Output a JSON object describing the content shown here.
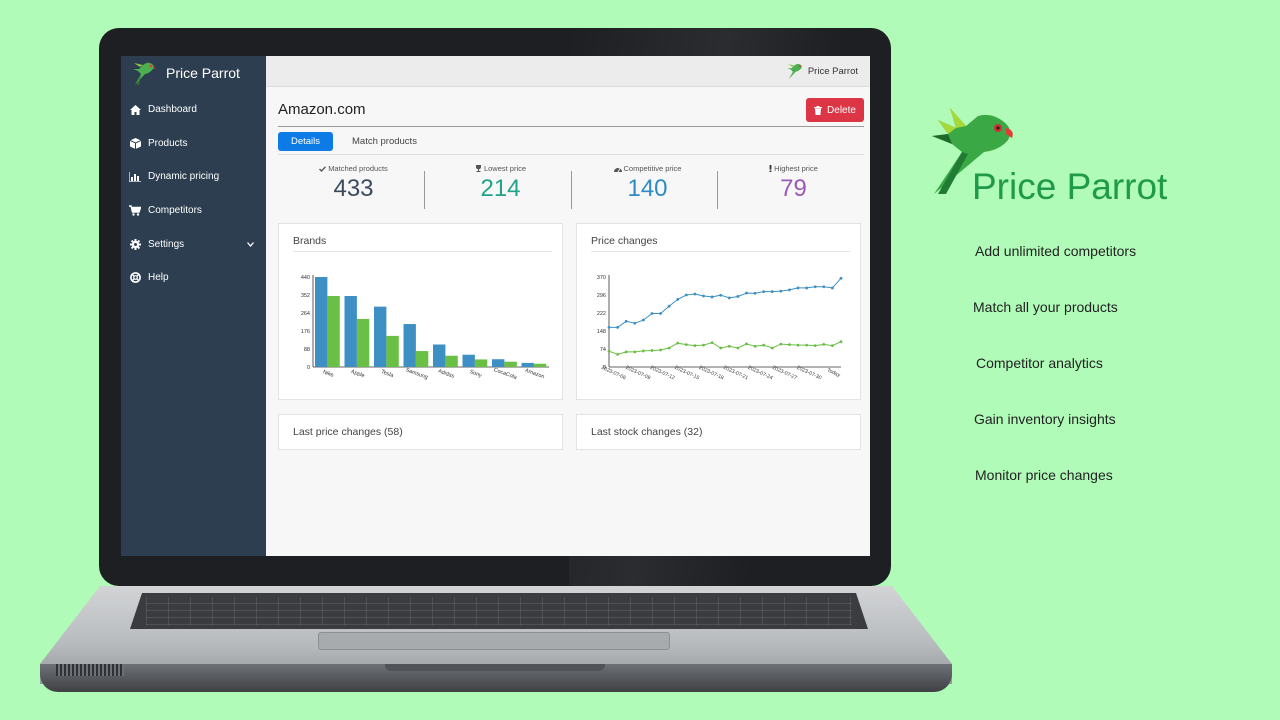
{
  "app": {
    "brand": "Price Parrot",
    "sidebar": {
      "items": [
        {
          "label": "Dashboard",
          "icon": "home-icon"
        },
        {
          "label": "Products",
          "icon": "box-icon"
        },
        {
          "label": "Dynamic pricing",
          "icon": "bar-chart-icon"
        },
        {
          "label": "Competitors",
          "icon": "cart-icon"
        },
        {
          "label": "Settings",
          "icon": "gear-icon"
        },
        {
          "label": "Help",
          "icon": "help-icon"
        }
      ]
    },
    "topbar": {
      "brand": "Price Parrot"
    },
    "page": {
      "title": "Amazon.com",
      "delete_label": "Delete",
      "tabs": [
        {
          "label": "Details",
          "active": true
        },
        {
          "label": "Match products",
          "active": false
        }
      ]
    },
    "stats": [
      {
        "label": "Matched products",
        "value": "433",
        "color": "#3b4b5c",
        "icon": "check-icon"
      },
      {
        "label": "Lowest price",
        "value": "214",
        "color": "#21a38a",
        "icon": "trophy-icon"
      },
      {
        "label": "Competitive price",
        "value": "140",
        "color": "#2e8bc4",
        "icon": "speedometer-icon"
      },
      {
        "label": "Highest price",
        "value": "79",
        "color": "#9b59b6",
        "icon": "exclamation-icon"
      }
    ],
    "cards": {
      "brands_title": "Brands",
      "price_changes_title": "Price changes",
      "last_price_changes": "Last price changes (58)",
      "last_stock_changes": "Last stock changes (32)"
    }
  },
  "chart_data": [
    {
      "type": "bar",
      "title": "Brands",
      "categories": [
        "Nike",
        "Apple",
        "Tesla",
        "Samsung",
        "Adidas",
        "Sony",
        "CocaCola",
        "Amazon"
      ],
      "series": [
        {
          "values": [
            440,
            347,
            295,
            210,
            110,
            60,
            38,
            20
          ],
          "color": "#3d8fc4"
        },
        {
          "values": [
            347,
            235,
            152,
            78,
            55,
            37,
            26,
            16
          ],
          "color": "#6abf45"
        }
      ],
      "y_ticks": [
        0,
        88,
        176,
        264,
        352,
        440
      ],
      "ylim": [
        0,
        440
      ]
    },
    {
      "type": "line",
      "title": "Price changes",
      "x_labels": [
        "2023-07-06",
        "2023-07-09",
        "2023-07-12",
        "2023-07-15",
        "2023-07-18",
        "2023-07-21",
        "2023-07-24",
        "2023-07-27",
        "2023-07-30",
        "Today"
      ],
      "y_ticks": [
        0,
        74,
        148,
        222,
        296,
        370
      ],
      "ylim": [
        0,
        370
      ],
      "series": [
        {
          "color": "#3d8fc4",
          "values": [
            163,
            163,
            188,
            180,
            193,
            220,
            220,
            250,
            278,
            296,
            300,
            292,
            288,
            295,
            284,
            290,
            304,
            303,
            310,
            310,
            312,
            317,
            325,
            325,
            330,
            330,
            325,
            365
          ]
        },
        {
          "color": "#6abf45",
          "values": [
            65,
            52,
            62,
            62,
            66,
            68,
            70,
            78,
            98,
            92,
            88,
            90,
            100,
            78,
            85,
            78,
            95,
            85,
            90,
            78,
            94,
            92,
            90,
            90,
            88,
            93,
            88,
            104
          ]
        }
      ]
    }
  ],
  "marketing": {
    "title": "Price Parrot",
    "features": [
      "Add unlimited competitors",
      "Match all your products",
      "Competitor analytics",
      "Gain inventory insights",
      "Monitor price changes"
    ]
  }
}
